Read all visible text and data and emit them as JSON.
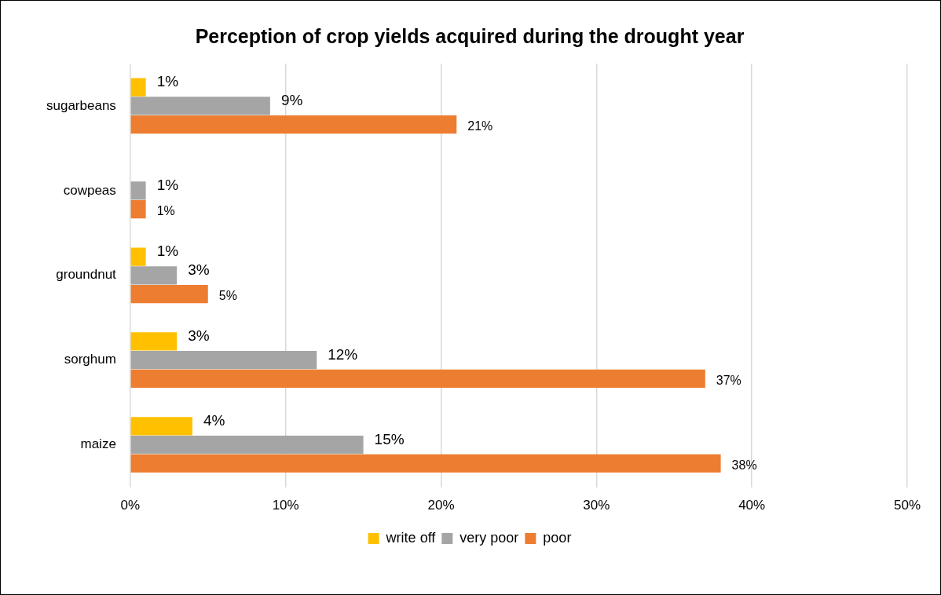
{
  "chart_data": {
    "type": "bar",
    "orientation": "horizontal",
    "title": "Perception of crop yields acquired during the drought year",
    "categories": [
      "sugarbeans",
      "cowpeas",
      "groundnut",
      "sorghum",
      "maize"
    ],
    "series": [
      {
        "name": "write off",
        "color": "#ffc000",
        "values": [
          1,
          null,
          1,
          3,
          4
        ],
        "value_labels": [
          "1%",
          null,
          "1%",
          "3%",
          "4%"
        ]
      },
      {
        "name": "very poor",
        "color": "#a5a5a5",
        "values": [
          9,
          1,
          3,
          12,
          15
        ],
        "value_labels": [
          "9%",
          "1%",
          "3%",
          "12%",
          "15%"
        ]
      },
      {
        "name": "poor",
        "color": "#ed7d31",
        "values": [
          21,
          1,
          5,
          37,
          38
        ],
        "value_labels": [
          "21%",
          "1%",
          "5%",
          "37%",
          "38%"
        ]
      }
    ],
    "xlim": [
      0,
      50
    ],
    "xticks": [
      {
        "value": 0,
        "label": "0%"
      },
      {
        "value": 10,
        "label": "10%"
      },
      {
        "value": 20,
        "label": "20%"
      },
      {
        "value": 30,
        "label": "30%"
      },
      {
        "value": 40,
        "label": "40%"
      },
      {
        "value": 50,
        "label": "50%"
      }
    ],
    "grid": "x",
    "legend": "bottom"
  }
}
